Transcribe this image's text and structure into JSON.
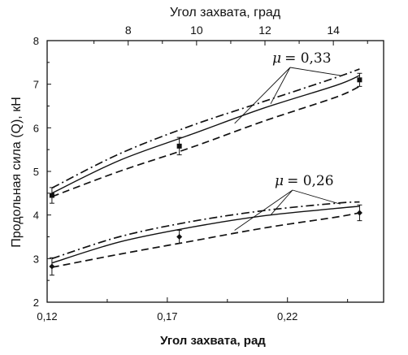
{
  "chart_data": {
    "type": "line",
    "title": "",
    "xlabel": "Угол захвата, рад",
    "x2label": "Угол захвата, град",
    "ylabel": "Продольная сила (Q), кН",
    "xlim": [
      0.12,
      0.26
    ],
    "ylim": [
      2,
      8
    ],
    "x_ticks": [
      "0,12",
      "0,17",
      "0,22"
    ],
    "x_tick_values": [
      0.12,
      0.17,
      0.22
    ],
    "x2_ticks": [
      "8",
      "10",
      "12",
      "14"
    ],
    "x2_tick_values": [
      8,
      10,
      12,
      14
    ],
    "y_ticks": [
      "2",
      "3",
      "4",
      "5",
      "6",
      "7",
      "8"
    ],
    "y_tick_values": [
      2,
      3,
      4,
      5,
      6,
      7,
      8
    ],
    "grid": false,
    "groups": [
      {
        "label_symbol": "μ",
        "label_value": "= 0,33",
        "series": [
          {
            "style": "dashdot",
            "x": [
              0.122,
              0.15,
              0.18,
              0.21,
              0.24,
              0.25
            ],
            "values": [
              4.62,
              5.4,
              6.05,
              6.6,
              7.15,
              7.35
            ]
          },
          {
            "style": "solid",
            "x": [
              0.122,
              0.15,
              0.18,
              0.21,
              0.24,
              0.25
            ],
            "values": [
              4.5,
              5.25,
              5.85,
              6.45,
              6.97,
              7.2
            ]
          },
          {
            "style": "dashed",
            "x": [
              0.122,
              0.15,
              0.18,
              0.21,
              0.24,
              0.25
            ],
            "values": [
              4.42,
              5.0,
              5.55,
              6.15,
              6.7,
              6.95
            ]
          }
        ],
        "markers": {
          "x": [
            0.122,
            0.175,
            0.25
          ],
          "values": [
            4.45,
            5.58,
            7.1
          ],
          "err": [
            0.18,
            0.2,
            0.15
          ],
          "shape": "square"
        }
      },
      {
        "label_symbol": "μ",
        "label_value": "= 0,26",
        "series": [
          {
            "style": "dashdot",
            "x": [
              0.122,
              0.15,
              0.18,
              0.21,
              0.24,
              0.25
            ],
            "values": [
              3.0,
              3.5,
              3.85,
              4.1,
              4.27,
              4.3
            ]
          },
          {
            "style": "solid",
            "x": [
              0.122,
              0.15,
              0.18,
              0.21,
              0.24,
              0.25
            ],
            "values": [
              2.9,
              3.38,
              3.72,
              3.98,
              4.15,
              4.2
            ]
          },
          {
            "style": "dashed",
            "x": [
              0.122,
              0.15,
              0.18,
              0.21,
              0.24,
              0.25
            ],
            "values": [
              2.8,
              3.1,
              3.4,
              3.7,
              3.95,
              4.05
            ]
          }
        ],
        "markers": {
          "x": [
            0.122,
            0.175,
            0.25
          ],
          "values": [
            2.82,
            3.5,
            4.05
          ],
          "err": [
            0.2,
            0.15,
            0.18
          ],
          "shape": "diamond"
        }
      }
    ]
  }
}
